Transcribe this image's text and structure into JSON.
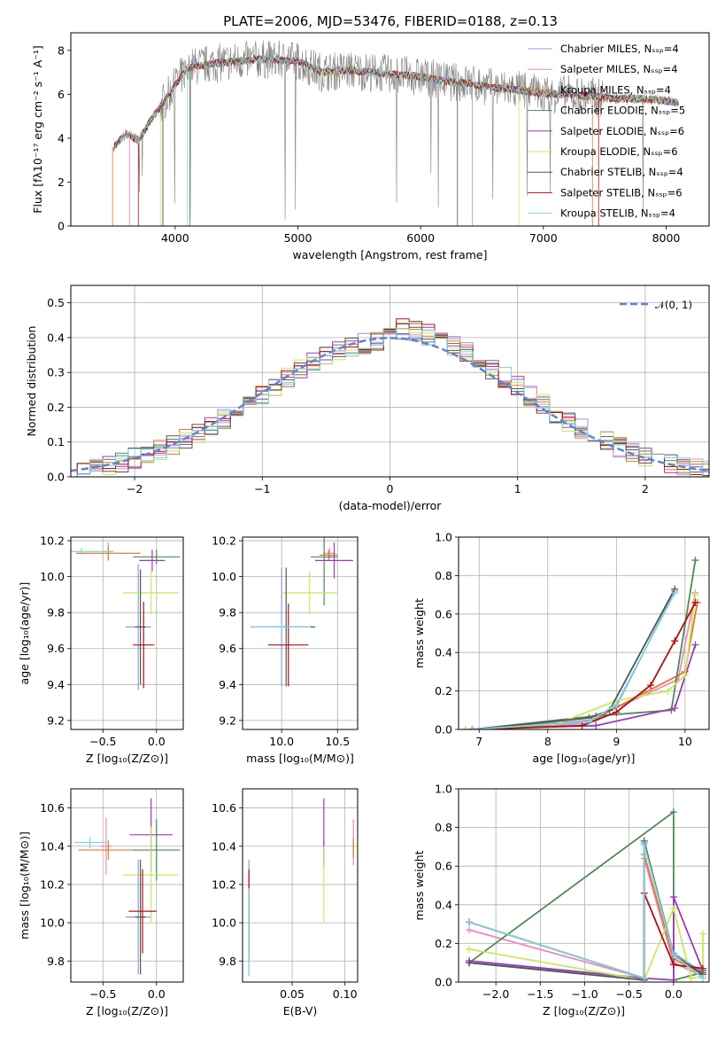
{
  "figure_title": "PLATE=2006, MJD=53476, FIBERID=0188, z=0.13",
  "colors": {
    "chabrier_miles": "#8aa0d8",
    "salpeter_miles": "#e98ac0",
    "kroupa_miles": "#e07b2c",
    "chabrier_elodie": "#4f8a55",
    "salpeter_elodie": "#9a3ab8",
    "kroupa_elodie": "#c8e85c",
    "chabrier_stelib": "#555555",
    "salpeter_stelib": "#b01010",
    "kroupa_stelib": "#80d4e0",
    "data": "#808080",
    "normal": "#5b84d8"
  },
  "chart_data": [
    {
      "id": "spectrum",
      "type": "line",
      "xlabel": "wavelength [Angstrom, rest frame]",
      "ylabel": "Flux [fλ10⁻¹⁷ erg cm⁻² s⁻¹ A⁻¹]",
      "xlim": [
        3150,
        8350
      ],
      "ylim": [
        0,
        8.8
      ],
      "xticks": [
        4000,
        5000,
        6000,
        7000,
        8000
      ],
      "yticks": [
        0,
        2,
        4,
        6,
        8
      ],
      "legend_position": "right",
      "legend": [
        "Chabrier MILES, Nₛₛₚ=4",
        "Salpeter MILES, Nₛₛₚ=4",
        "Kroupa MILES, Nₛₛₚ=4",
        "Chabrier ELODIE, Nₛₛₚ=5",
        "Salpeter ELODIE, Nₛₛₚ=6",
        "Kroupa ELODIE, Nₛₛₚ=6",
        "Chabrier STELIB, Nₛₛₚ=4",
        "Salpeter STELIB, Nₛₛₚ=6",
        "Kroupa STELIB, Nₛₛₚ=4"
      ],
      "model_continuum": {
        "x": [
          3500,
          3600,
          3700,
          3800,
          3900,
          4000,
          4100,
          4200,
          4300,
          4500,
          4700,
          5000,
          5200,
          5400,
          5600,
          5800,
          6000,
          6200,
          6400,
          6600,
          6800,
          7000,
          7200,
          7400,
          7600,
          7800,
          8000,
          8100
        ],
        "y": [
          3.6,
          4.2,
          3.9,
          4.8,
          5.6,
          6.4,
          7.2,
          7.3,
          7.4,
          7.5,
          7.6,
          7.5,
          7.0,
          7.1,
          7.0,
          6.9,
          6.8,
          6.6,
          6.5,
          6.3,
          6.2,
          6.0,
          6.0,
          5.9,
          5.8,
          5.8,
          5.7,
          5.6
        ]
      }
    },
    {
      "id": "residuals",
      "type": "line",
      "xlabel": "(data-model)/error",
      "ylabel": "Normed distribution",
      "xlim": [
        -2.5,
        2.5
      ],
      "ylim": [
        0,
        0.55
      ],
      "xticks": [
        -2,
        -1,
        0,
        1,
        2
      ],
      "yticks": [
        0.0,
        0.1,
        0.2,
        0.3,
        0.4,
        0.5
      ],
      "legend_position": "top-right",
      "legend": [
        "𝒩(0, 1)"
      ],
      "normal": {
        "mean": 0,
        "sigma": 1
      }
    },
    {
      "id": "age_vs_Z",
      "type": "scatter",
      "xlabel": "Z [log₁₀(Z/Z⊙)]",
      "ylabel": "age  [log₁₀(age/yr)]",
      "xlim": [
        -0.8,
        0.25
      ],
      "ylim": [
        9.15,
        10.22
      ],
      "xticks": [
        -0.5,
        0.0
      ],
      "yticks": [
        9.2,
        9.4,
        9.6,
        9.8,
        10.0,
        10.2
      ],
      "points": [
        {
          "key": "chabrier_miles",
          "x": -0.17,
          "xerr": 0.12,
          "y": 9.72,
          "yerr": 0.35
        },
        {
          "key": "salpeter_miles",
          "x": -0.45,
          "xerr": 0.05,
          "y": 10.14,
          "yerr": 0.05
        },
        {
          "key": "kroupa_miles",
          "x": -0.45,
          "xerr": 0.3,
          "y": 10.13,
          "yerr": 0.04
        },
        {
          "key": "chabrier_elodie",
          "x": 0.0,
          "xerr": 0.22,
          "y": 10.11,
          "yerr": 0.04
        },
        {
          "key": "salpeter_elodie",
          "x": -0.04,
          "xerr": 0.12,
          "y": 10.09,
          "yerr": 0.06
        },
        {
          "key": "kroupa_elodie",
          "x": -0.05,
          "xerr": 0.26,
          "y": 9.91,
          "yerr": 0.12
        },
        {
          "key": "chabrier_stelib",
          "x": -0.15,
          "xerr": 0.05,
          "y": 9.72,
          "yerr": 0.32
        },
        {
          "key": "salpeter_stelib",
          "x": -0.12,
          "xerr": 0.1,
          "y": 9.62,
          "yerr": 0.24
        },
        {
          "key": "kroupa_stelib",
          "x": -0.7,
          "xerr": 0.3,
          "y": 10.14,
          "yerr": 0.02
        }
      ]
    },
    {
      "id": "age_vs_mass",
      "type": "scatter",
      "xlabel": "mass [log₁₀(M/M⊙)]",
      "ylabel": "",
      "xlim": [
        9.65,
        10.68
      ],
      "ylim": [
        9.15,
        10.22
      ],
      "xticks": [
        10.0,
        10.5
      ],
      "yticks": [
        9.2,
        9.4,
        9.6,
        9.8,
        10.0,
        10.2
      ],
      "points": [
        {
          "key": "chabrier_miles",
          "x": 10.0,
          "xerr": 0.28,
          "y": 9.72,
          "yerr": 0.33
        },
        {
          "key": "salpeter_miles",
          "x": 10.43,
          "xerr": 0.05,
          "y": 10.13,
          "yerr": 0.03
        },
        {
          "key": "kroupa_miles",
          "x": 10.42,
          "xerr": 0.08,
          "y": 10.12,
          "yerr": 0.03
        },
        {
          "key": "chabrier_elodie",
          "x": 10.38,
          "xerr": 0.12,
          "y": 10.11,
          "yerr": 0.27
        },
        {
          "key": "salpeter_elodie",
          "x": 10.47,
          "xerr": 0.17,
          "y": 10.09,
          "yerr": 0.1
        },
        {
          "key": "kroupa_elodie",
          "x": 10.25,
          "xerr": 0.25,
          "y": 9.91,
          "yerr": 0.12
        },
        {
          "key": "chabrier_stelib",
          "x": 10.04,
          "xerr": 0.26,
          "y": 9.72,
          "yerr": 0.33
        },
        {
          "key": "salpeter_stelib",
          "x": 10.06,
          "xerr": 0.18,
          "y": 9.62,
          "yerr": 0.23
        },
        {
          "key": "kroupa_stelib",
          "x": 10.0,
          "xerr": 0.26,
          "y": 9.72,
          "yerr": 0.02
        }
      ]
    },
    {
      "id": "weight_vs_age",
      "type": "line",
      "xlabel": "age  [log₁₀(age/yr)]",
      "ylabel": "mass weight",
      "xlim": [
        6.7,
        10.35
      ],
      "ylim": [
        0,
        1.0
      ],
      "xticks": [
        7,
        8,
        9,
        10
      ],
      "yticks": [
        0.0,
        0.2,
        0.4,
        0.6,
        0.8,
        1.0
      ],
      "series": [
        {
          "key": "chabrier_miles",
          "x": [
            6.9,
            8.7,
            9.0,
            9.85
          ],
          "y": [
            0.0,
            0.05,
            0.12,
            0.72
          ]
        },
        {
          "key": "salpeter_miles",
          "x": [
            6.9,
            8.5,
            9.9,
            10.15
          ],
          "y": [
            0.0,
            0.03,
            0.26,
            0.71
          ]
        },
        {
          "key": "kroupa_miles",
          "x": [
            6.9,
            8.6,
            10.0,
            10.18
          ],
          "y": [
            0.0,
            0.04,
            0.3,
            0.66
          ]
        },
        {
          "key": "chabrier_elodie",
          "x": [
            6.9,
            8.7,
            9.8,
            10.15
          ],
          "y": [
            0.0,
            0.07,
            0.1,
            0.88
          ]
        },
        {
          "key": "salpeter_elodie",
          "x": [
            6.8,
            8.7,
            9.85,
            10.15
          ],
          "y": [
            0.0,
            0.02,
            0.11,
            0.44
          ]
        },
        {
          "key": "kroupa_elodie",
          "x": [
            6.8,
            8.0,
            9.0,
            9.75,
            10.0,
            10.15
          ],
          "y": [
            0.0,
            0.01,
            0.15,
            0.2,
            0.28,
            0.7
          ]
        },
        {
          "key": "chabrier_stelib",
          "x": [
            6.9,
            8.6,
            8.9,
            9.85
          ],
          "y": [
            0.0,
            0.06,
            0.1,
            0.73
          ]
        },
        {
          "key": "salpeter_stelib",
          "x": [
            6.9,
            8.5,
            9.0,
            9.5,
            9.85,
            10.15
          ],
          "y": [
            0.0,
            0.02,
            0.09,
            0.23,
            0.46,
            0.66
          ]
        },
        {
          "key": "kroupa_stelib",
          "x": [
            6.9,
            8.6,
            9.0,
            9.85
          ],
          "y": [
            0.0,
            0.04,
            0.13,
            0.71
          ]
        }
      ]
    },
    {
      "id": "mass_vs_Z",
      "type": "scatter",
      "xlabel": "Z [log₁₀(Z/Z⊙)]",
      "ylabel": "mass [log₁₀(M/M⊙)]",
      "xlim": [
        -0.8,
        0.25
      ],
      "ylim": [
        9.69,
        10.7
      ],
      "xticks": [
        -0.5,
        0.0
      ],
      "yticks": [
        9.8,
        10.0,
        10.2,
        10.4,
        10.6
      ],
      "points": [
        {
          "key": "chabrier_miles",
          "x": -0.17,
          "xerr": 0.12,
          "y": 10.03,
          "yerr": 0.3
        },
        {
          "key": "salpeter_miles",
          "x": -0.47,
          "xerr": 0.05,
          "y": 10.4,
          "yerr": 0.15
        },
        {
          "key": "kroupa_miles",
          "x": -0.45,
          "xerr": 0.28,
          "y": 10.38,
          "yerr": 0.05
        },
        {
          "key": "chabrier_elodie",
          "x": 0.0,
          "xerr": 0.22,
          "y": 10.38,
          "yerr": 0.16
        },
        {
          "key": "salpeter_elodie",
          "x": -0.05,
          "xerr": 0.2,
          "y": 10.46,
          "yerr": 0.19
        },
        {
          "key": "kroupa_elodie",
          "x": -0.05,
          "xerr": 0.26,
          "y": 10.25,
          "yerr": 0.25
        },
        {
          "key": "chabrier_stelib",
          "x": -0.15,
          "xerr": 0.05,
          "y": 10.03,
          "yerr": 0.3
        },
        {
          "key": "salpeter_stelib",
          "x": -0.13,
          "xerr": 0.13,
          "y": 10.06,
          "yerr": 0.22
        },
        {
          "key": "kroupa_stelib",
          "x": -0.62,
          "xerr": 0.15,
          "y": 10.42,
          "yerr": 0.03
        }
      ]
    },
    {
      "id": "mass_vs_ebv",
      "type": "scatter",
      "xlabel": "E(B-V)",
      "ylabel": "",
      "xlim": [
        0.003,
        0.112
      ],
      "ylim": [
        9.69,
        10.7
      ],
      "xticks": [
        0.05,
        0.1
      ],
      "yticks": [
        9.8,
        10.0,
        10.2,
        10.4,
        10.6
      ],
      "points": [
        {
          "key": "chabrier_miles",
          "x": 0.009,
          "xerr": 0,
          "y": 10.03,
          "yerr": 0.3
        },
        {
          "key": "salpeter_miles",
          "x": 0.108,
          "xerr": 0,
          "y": 10.42,
          "yerr": 0.12
        },
        {
          "key": "kroupa_miles",
          "x": 0.108,
          "xerr": 0,
          "y": 10.39,
          "yerr": 0.05
        },
        {
          "key": "chabrier_elodie",
          "x": 0.08,
          "xerr": 0,
          "y": 10.38,
          "yerr": 0.05
        },
        {
          "key": "salpeter_elodie",
          "x": 0.08,
          "xerr": 0,
          "y": 10.47,
          "yerr": 0.18
        },
        {
          "key": "kroupa_elodie",
          "x": 0.08,
          "xerr": 0,
          "y": 10.2,
          "yerr": 0.2
        },
        {
          "key": "chabrier_stelib",
          "x": 0.009,
          "xerr": 0,
          "y": 10.0,
          "yerr": 0.2
        },
        {
          "key": "salpeter_stelib",
          "x": 0.009,
          "xerr": 0,
          "y": 10.06,
          "yerr": 0.22
        },
        {
          "key": "kroupa_stelib",
          "x": 0.009,
          "xerr": 0,
          "y": 9.95,
          "yerr": 0.23
        }
      ]
    },
    {
      "id": "weight_vs_Z",
      "type": "line",
      "xlabel": "Z [log₁₀(Z/Z⊙)]",
      "ylabel": "mass weight",
      "xlim": [
        -2.42,
        0.4
      ],
      "ylim": [
        0,
        1.0
      ],
      "xticks": [
        -2.0,
        -1.5,
        -1.0,
        -0.5,
        0.0
      ],
      "yticks": [
        0.0,
        0.2,
        0.4,
        0.6,
        0.8,
        1.0
      ],
      "series": [
        {
          "key": "chabrier_miles",
          "x": [
            -2.3,
            -0.33,
            -0.33,
            0.0,
            0.33
          ],
          "y": [
            0.1,
            0.02,
            0.72,
            0.15,
            0.05
          ]
        },
        {
          "key": "salpeter_miles",
          "x": [
            -2.3,
            -0.33,
            -0.33,
            0.0,
            0.33
          ],
          "y": [
            0.27,
            0.02,
            0.64,
            0.1,
            0.03
          ]
        },
        {
          "key": "kroupa_miles",
          "x": [
            -2.3,
            -0.33,
            -0.33,
            0.0,
            0.33
          ],
          "y": [
            0.31,
            0.02,
            0.66,
            0.12,
            0.04
          ]
        },
        {
          "key": "chabrier_elodie",
          "x": [
            -2.3,
            0.0,
            0.0,
            0.33
          ],
          "y": [
            0.1,
            0.88,
            0.01,
            0.05
          ]
        },
        {
          "key": "salpeter_elodie",
          "x": [
            -2.3,
            -0.33,
            0.0,
            0.0,
            0.33
          ],
          "y": [
            0.11,
            0.02,
            0.01,
            0.44,
            0.06
          ]
        },
        {
          "key": "kroupa_elodie",
          "x": [
            -2.3,
            -0.33,
            0.0,
            0.2,
            0.33,
            0.33
          ],
          "y": [
            0.17,
            0.01,
            0.38,
            0.02,
            0.03,
            0.25
          ]
        },
        {
          "key": "chabrier_stelib",
          "x": [
            -2.3,
            -0.33,
            -0.33,
            0.0,
            0.33
          ],
          "y": [
            0.1,
            0.01,
            0.73,
            0.14,
            0.04
          ]
        },
        {
          "key": "salpeter_stelib",
          "x": [
            -2.3,
            -0.33,
            -0.33,
            0.0,
            0.33
          ],
          "y": [
            0.31,
            0.02,
            0.46,
            0.09,
            0.07
          ]
        },
        {
          "key": "kroupa_stelib",
          "x": [
            -2.3,
            -0.33,
            -0.33,
            0.0,
            0.33
          ],
          "y": [
            0.31,
            0.02,
            0.71,
            0.14,
            0.02
          ]
        }
      ]
    }
  ]
}
